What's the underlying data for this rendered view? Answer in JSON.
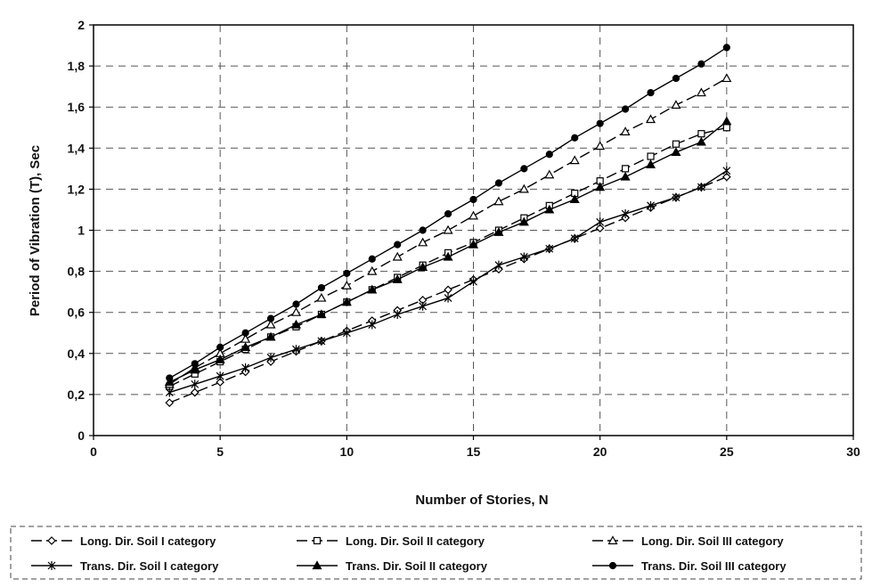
{
  "chart_data": {
    "type": "line",
    "title": "",
    "xlabel": "Number of Stories, N",
    "ylabel": "Period of Vibration (T), Sec",
    "xlim": [
      0,
      30
    ],
    "ylim": [
      0,
      2
    ],
    "x_ticks": [
      0,
      5,
      10,
      15,
      20,
      25,
      30
    ],
    "x_tick_labels": [
      "0",
      "5",
      "10",
      "15",
      "20",
      "25",
      "30"
    ],
    "y_ticks": [
      0,
      0.2,
      0.4,
      0.6,
      0.8,
      1,
      1.2,
      1.4,
      1.6,
      1.8,
      2
    ],
    "y_tick_labels": [
      "0",
      "0,2",
      "0,4",
      "0,6",
      "0,8",
      "1",
      "1,2",
      "1,4",
      "1,6",
      "1,8",
      "2"
    ],
    "grid": true,
    "legend_position": "bottom",
    "x": [
      3,
      4,
      5,
      6,
      7,
      8,
      9,
      10,
      11,
      12,
      13,
      14,
      15,
      16,
      17,
      18,
      19,
      20,
      21,
      22,
      23,
      24,
      25
    ],
    "series": [
      {
        "name": "Long. Dir. Soil I category",
        "marker": "diamond-open",
        "dash": "long-dash",
        "color": "#000000",
        "values": [
          0.16,
          0.21,
          0.26,
          0.31,
          0.36,
          0.41,
          0.46,
          0.51,
          0.56,
          0.61,
          0.66,
          0.71,
          0.76,
          0.81,
          0.86,
          0.91,
          0.96,
          1.01,
          1.06,
          1.11,
          1.16,
          1.21,
          1.26
        ]
      },
      {
        "name": "Long. Dir. Soil II category",
        "marker": "square-open",
        "dash": "long-dash",
        "color": "#000000",
        "values": [
          0.24,
          0.3,
          0.36,
          0.42,
          0.48,
          0.53,
          0.59,
          0.65,
          0.71,
          0.77,
          0.83,
          0.89,
          0.94,
          1.0,
          1.06,
          1.12,
          1.18,
          1.24,
          1.3,
          1.36,
          1.42,
          1.47,
          1.5
        ]
      },
      {
        "name": "Long. Dir. Soil III category",
        "marker": "triangle-open",
        "dash": "long-dash",
        "color": "#000000",
        "values": [
          0.25,
          0.33,
          0.4,
          0.47,
          0.54,
          0.6,
          0.67,
          0.73,
          0.8,
          0.87,
          0.94,
          1.0,
          1.07,
          1.14,
          1.2,
          1.27,
          1.34,
          1.41,
          1.48,
          1.54,
          1.61,
          1.67,
          1.74
        ]
      },
      {
        "name": "Trans. Dir. Soil I category",
        "marker": "star",
        "dash": "solid",
        "color": "#000000",
        "values": [
          0.21,
          0.25,
          0.29,
          0.33,
          0.38,
          0.42,
          0.46,
          0.5,
          0.54,
          0.59,
          0.63,
          0.67,
          0.75,
          0.83,
          0.87,
          0.91,
          0.96,
          1.04,
          1.08,
          1.12,
          1.16,
          1.21,
          1.29
        ]
      },
      {
        "name": "Trans. Dir. Soil II category",
        "marker": "triangle-filled",
        "dash": "solid",
        "color": "#000000",
        "values": [
          0.26,
          0.32,
          0.37,
          0.43,
          0.48,
          0.54,
          0.59,
          0.65,
          0.71,
          0.76,
          0.82,
          0.87,
          0.93,
          0.99,
          1.04,
          1.1,
          1.15,
          1.21,
          1.26,
          1.32,
          1.38,
          1.43,
          1.53
        ]
      },
      {
        "name": "Trans. Dir. Soil III category",
        "marker": "circle-filled",
        "dash": "solid",
        "color": "#000000",
        "values": [
          0.28,
          0.35,
          0.43,
          0.5,
          0.57,
          0.64,
          0.72,
          0.79,
          0.86,
          0.93,
          1.0,
          1.08,
          1.15,
          1.23,
          1.3,
          1.37,
          1.45,
          1.52,
          1.59,
          1.67,
          1.74,
          1.81,
          1.89
        ]
      }
    ]
  }
}
